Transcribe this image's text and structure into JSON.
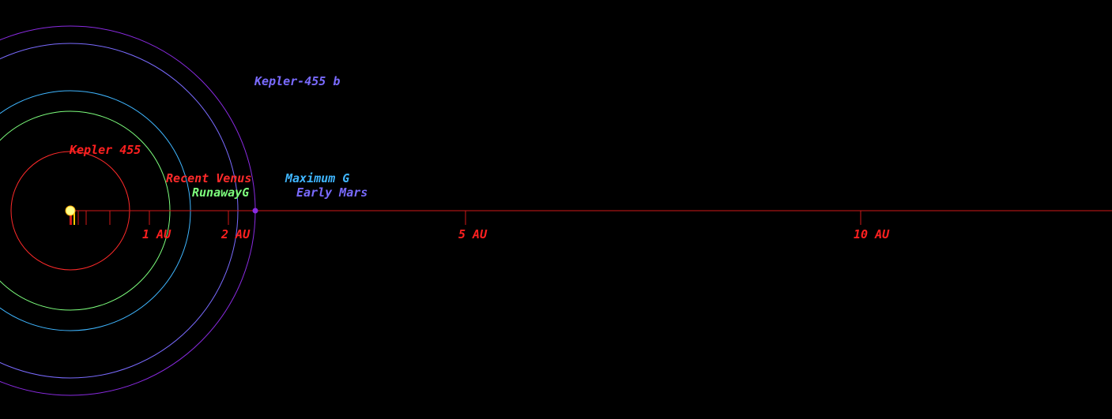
{
  "system": {
    "star_name": "Kepler 455",
    "planet_name": "Kepler-455 b",
    "planet_orbit_au": 2.34
  },
  "habitable_zone": [
    {
      "id": "recent-venus",
      "label": "Recent Venus",
      "au": 0.75,
      "color": "#ff2a2a"
    },
    {
      "id": "runaway-greenhouse",
      "label": "RunawayG",
      "au": 1.26,
      "color": "#7dff7d"
    },
    {
      "id": "maximum-greenhouse",
      "label": "Maximum G",
      "au": 1.52,
      "color": "#3fb6ff"
    },
    {
      "id": "early-mars",
      "label": "Early Mars",
      "au": 2.12,
      "color": "#7a6bff"
    }
  ],
  "scale": {
    "ticks": [
      {
        "au": 0.1
      },
      {
        "au": 0.2
      },
      {
        "au": 0.5
      },
      {
        "au": 1,
        "label": "1 AU"
      },
      {
        "au": 2,
        "label": "2 AU"
      },
      {
        "au": 5,
        "label": "5 AU"
      },
      {
        "au": 10,
        "label": "10 AU"
      }
    ]
  },
  "colors": {
    "background": "#000000",
    "axis": "#d01818",
    "star": "#ffff88",
    "planet": "#8a2be2",
    "planet_label": "#7a6bff",
    "star_label": "#ff2020",
    "tick_label": "#ff2020"
  }
}
